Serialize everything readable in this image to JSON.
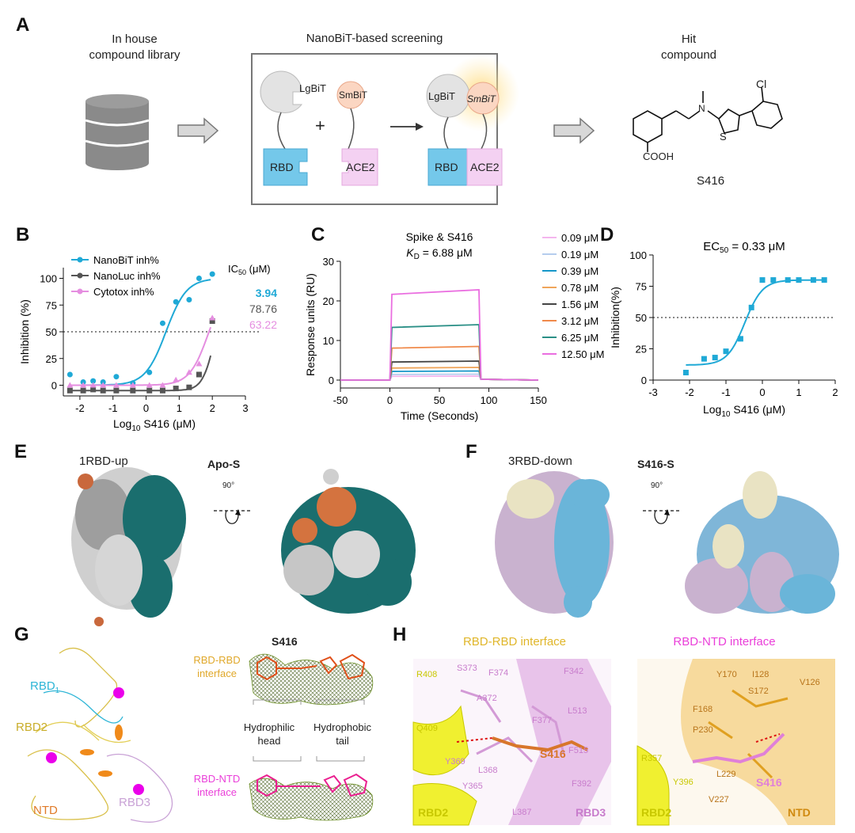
{
  "panelA": {
    "letter": "A",
    "library_label": "In house\ncompound library",
    "screening_title": "NanoBiT-based screening",
    "hit_label": "Hit\ncompound",
    "lgbit": "LgBiT",
    "smbit": "SmBiT",
    "rbd": "RBD",
    "ace2": "ACE2",
    "plus": "+",
    "hit_cl": "Cl",
    "hit_n": "N",
    "hit_s": "S",
    "hit_cooh": "COOH",
    "hit_name": "S416"
  },
  "panelB": {
    "letter": "B",
    "ic50_header": "IC",
    "ic50_sub": "50",
    "ic50_unit": " (μM)",
    "ic50_values": [
      "3.94",
      "78.76",
      "63.22"
    ],
    "legend": [
      "NanoBiT inh%",
      "NanoLuc inh%",
      "Cytotox inh%"
    ],
    "colors": [
      "#1fa9d6",
      "#555555",
      "#e58ee0"
    ],
    "xlabel": "Log",
    "xlabel_sub": "10",
    "xlabel_rest": " S416 (μM)",
    "ylabel": "Inhibition (%)"
  },
  "panelC": {
    "letter": "C",
    "title": "Spike & S416",
    "kd_k": "K",
    "kd_sub": "D",
    "kd_rest": " = 6.88 μM",
    "xlabel": "Time (Seconds)",
    "ylabel": "Response units (RU)",
    "legend": [
      "0.09 μM",
      "0.19 μM",
      "0.39 μM",
      "0.78 μM",
      "1.56 μM",
      "3.12 μM",
      "6.25 μM",
      "12.50 μM"
    ],
    "colors": [
      "#f4b6ee",
      "#b5cdee",
      "#1597c9",
      "#f0a55a",
      "#444444",
      "#f08a4b",
      "#2a8f86",
      "#ea6ee0"
    ]
  },
  "panelD": {
    "letter": "D",
    "title_pre": "EC",
    "title_sub": "50",
    "title_rest": " =  0.33 μM",
    "xlabel": "Log",
    "xlabel_sub": "10",
    "xlabel_rest": " S416 (μM)",
    "ylabel": "Inhibition(%)",
    "color": "#1fa9d6"
  },
  "panelE": {
    "letter": "E",
    "label": "1RBD-up",
    "name": "Apo-S",
    "rotation": "90°"
  },
  "panelF": {
    "letter": "F",
    "label": "3RBD-down",
    "name": "S416-S",
    "rotation": "90°"
  },
  "panelG": {
    "letter": "G",
    "compound": "S416",
    "rbd1": "RBD",
    "rbd1_sub": "1",
    "rbd2": "RBD2",
    "rbd3": "RBD3",
    "ntd": "NTD",
    "rbd_rbd": "RBD-RBD\ninterface",
    "rbd_ntd": "RBD-NTD\ninterface",
    "hydrophilic": "Hydrophilic\nhead",
    "hydrophobic": "Hydrophobic\ntail"
  },
  "panelH": {
    "letter": "H",
    "left_title": "RBD-RBD interface",
    "right_title": "RBD-NTD interface",
    "left_residues": [
      "R408",
      "S373",
      "F374",
      "F342",
      "A372",
      "F377",
      "L513",
      "Q409",
      "S416",
      "F515",
      "Y369",
      "L368",
      "F392",
      "Y365",
      "L387",
      "RBD2",
      "RBD3"
    ],
    "right_residues": [
      "Y170",
      "I128",
      "V126",
      "S172",
      "F168",
      "P230",
      "R357",
      "L229",
      "S416",
      "Y396",
      "V227",
      "RBD2",
      "NTD"
    ]
  },
  "chart_data": [
    {
      "type": "scatter",
      "panel": "B",
      "xlabel": "Log10 S416 (μM)",
      "ylabel": "Inhibition (%)",
      "xlim": [
        -2.5,
        3
      ],
      "ylim": [
        -10,
        110
      ],
      "xticks": [
        -2,
        -1,
        0,
        1,
        2,
        3
      ],
      "yticks": [
        0,
        25,
        50,
        75,
        100
      ],
      "reference_line": 50,
      "legend_placement": "top-left",
      "x": [
        -2.3,
        -1.9,
        -1.6,
        -1.3,
        -0.9,
        -0.4,
        0.1,
        0.5,
        0.9,
        1.3,
        1.6,
        2.0
      ],
      "series": [
        {
          "name": "NanoBiT inh%",
          "ic50": "3.94",
          "values": [
            10,
            3,
            4,
            3,
            8,
            2,
            12,
            58,
            78,
            80,
            100,
            104
          ]
        },
        {
          "name": "NanoLuc inh%",
          "ic50": "78.76",
          "values": [
            -5,
            -5,
            -4,
            -5,
            -5,
            -5,
            -5,
            -5,
            -3,
            -2,
            10,
            60
          ]
        },
        {
          "name": "Cytotox inh%",
          "ic50": "63.22",
          "values": [
            0,
            0,
            0,
            0,
            0,
            0,
            0,
            0,
            5,
            12,
            20,
            63
          ]
        }
      ]
    },
    {
      "type": "line",
      "panel": "C",
      "title": "Spike & S416",
      "xlabel": "Time (Seconds)",
      "ylabel": "Response units (RU)",
      "xlim": [
        -50,
        150
      ],
      "ylim": [
        -2,
        30
      ],
      "xticks": [
        -50,
        0,
        50,
        100,
        150
      ],
      "yticks": [
        0,
        10,
        20,
        30
      ],
      "association_end_s": 90,
      "legend_placement": "right",
      "series": [
        {
          "name": "0.09 μM",
          "plateau": 1.0
        },
        {
          "name": "0.19 μM",
          "plateau": 1.5
        },
        {
          "name": "0.39 μM",
          "plateau": 2.3
        },
        {
          "name": "0.78 μM",
          "plateau": 3.2
        },
        {
          "name": "1.56 μM",
          "plateau": 4.8
        },
        {
          "name": "3.12 μM",
          "plateau": 8.5
        },
        {
          "name": "6.25 μM",
          "plateau": 14.0
        },
        {
          "name": "12.50 μM",
          "plateau": 22.8
        }
      ]
    },
    {
      "type": "scatter",
      "panel": "D",
      "xlabel": "Log10 S416 (μM)",
      "ylabel": "Inhibition(%)",
      "xlim": [
        -3,
        2
      ],
      "ylim": [
        0,
        100
      ],
      "xticks": [
        -3,
        -2,
        -1,
        0,
        1,
        2
      ],
      "yticks": [
        0,
        25,
        50,
        75,
        100
      ],
      "reference_line": 50,
      "ec50": "0.33 μM",
      "x": [
        -2.1,
        -1.6,
        -1.3,
        -1.0,
        -0.6,
        -0.3,
        0.0,
        0.3,
        0.7,
        1.0,
        1.4,
        1.7
      ],
      "values": [
        6,
        17,
        18,
        23,
        33,
        58,
        80,
        80,
        80,
        80,
        80,
        80
      ]
    }
  ]
}
